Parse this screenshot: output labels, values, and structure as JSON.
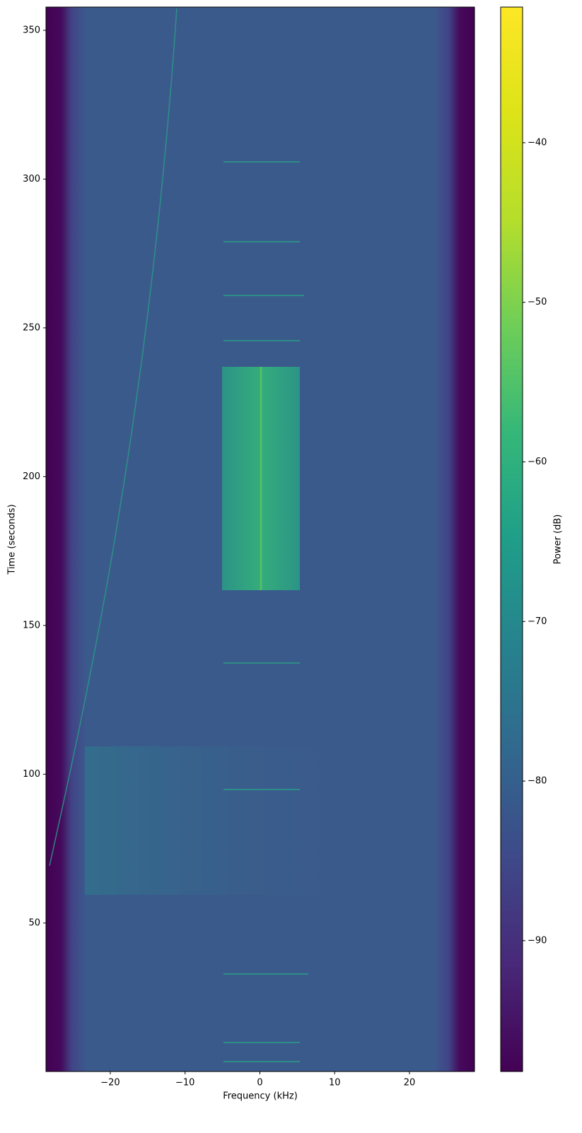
{
  "chart_data": {
    "type": "spectrogram",
    "x_label": "Frequency (kHz)",
    "y_label": "Time (seconds)",
    "xlim": [
      -28.6,
      28.7
    ],
    "ylim": [
      0.1,
      357.8
    ],
    "xticks": [
      {
        "value": -20,
        "label": "−20"
      },
      {
        "value": -10,
        "label": "−10"
      },
      0,
      10,
      20
    ],
    "yticks": [
      50,
      100,
      150,
      200,
      250,
      300,
      350
    ],
    "colormap": "viridis",
    "colorbar": {
      "label": "Power (dB)",
      "clim": [
        -98.2,
        -31.5
      ],
      "ticks": [
        {
          "value": -90,
          "label": "−90"
        },
        {
          "value": -80,
          "label": "−80"
        },
        {
          "value": -70,
          "label": "−70"
        },
        {
          "value": -60,
          "label": "−60"
        },
        {
          "value": -50,
          "label": "−50"
        },
        {
          "value": -40,
          "label": "−40"
        }
      ]
    }
  }
}
